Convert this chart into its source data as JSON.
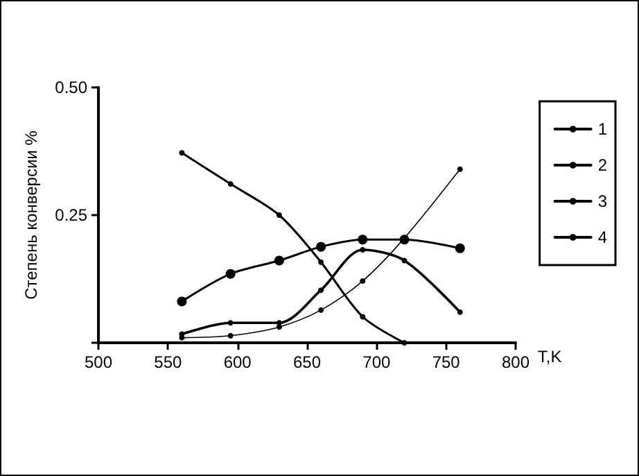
{
  "chart_data": {
    "type": "line",
    "xlabel": "T,K",
    "ylabel": "Степень конверсии %",
    "xlim": [
      500,
      800
    ],
    "xticks": [
      500,
      550,
      600,
      650,
      700,
      750,
      800
    ],
    "ylim": [
      0,
      0.5
    ],
    "yticks": [
      {
        "value": 0,
        "label": null
      },
      {
        "value": 0.25,
        "label": "0.25"
      },
      {
        "value": 0.5,
        "label": "0.50"
      }
    ],
    "grid": false,
    "legend": "right",
    "marker": "circle",
    "line_style": "solid",
    "series": [
      {
        "name": "1",
        "color": "#000000",
        "x": [
          560,
          595,
          630,
          660,
          690,
          720
        ],
        "values": [
          0.372,
          0.311,
          0.25,
          0.158,
          0.051,
          0
        ]
      },
      {
        "name": "2",
        "color": "#000000",
        "x": [
          560,
          595,
          630,
          660,
          690,
          720,
          760
        ],
        "values": [
          0.081,
          0.135,
          0.161,
          0.188,
          0.202,
          0.202,
          0.185
        ]
      },
      {
        "name": "3",
        "color": "#000000",
        "x": [
          560,
          595,
          630,
          660,
          690,
          720,
          760
        ],
        "values": [
          0.017,
          0.039,
          0.039,
          0.103,
          0.182,
          0.161,
          0.06
        ]
      },
      {
        "name": "4",
        "color": "#000000",
        "x": [
          560,
          595,
          630,
          660,
          690,
          720,
          760
        ],
        "values": [
          0.01,
          0.014,
          0.031,
          0.064,
          0.121,
          0.205,
          0.34
        ]
      }
    ]
  }
}
